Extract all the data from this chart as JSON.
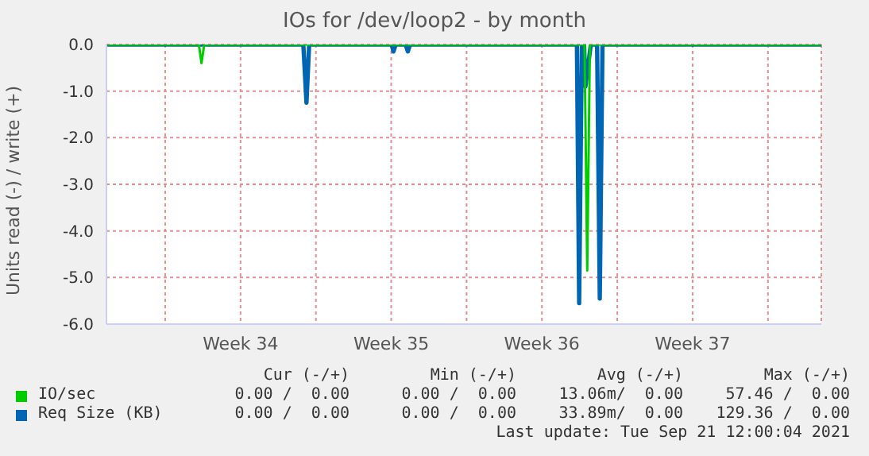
{
  "chart_data": {
    "type": "line",
    "title": "IOs for /dev/loop2 - by month",
    "ylabel": "Units read (-) / write (+)",
    "xlim": [
      "2021-08-20T06:30",
      "2021-09-22T11:30"
    ],
    "xticks": [
      {
        "value": "2021-08-23",
        "label": null
      },
      {
        "value": "2021-08-26T12:00",
        "label": "Week 34"
      },
      {
        "value": "2021-08-30",
        "label": null
      },
      {
        "value": "2021-09-02T12:00",
        "label": "Week 35"
      },
      {
        "value": "2021-09-06",
        "label": null
      },
      {
        "value": "2021-09-09T12:00",
        "label": "Week 36"
      },
      {
        "value": "2021-09-13",
        "label": null
      },
      {
        "value": "2021-09-16T12:00",
        "label": "Week 37"
      },
      {
        "value": "2021-09-20",
        "label": null
      }
    ],
    "ylim": [
      -6,
      0
    ],
    "yticks": [
      {
        "value": -6,
        "label": "-6.0"
      },
      {
        "value": -5,
        "label": "-5.0"
      },
      {
        "value": -4,
        "label": "-4.0"
      },
      {
        "value": -3,
        "label": "-3.0"
      },
      {
        "value": -2,
        "label": "-2.0"
      },
      {
        "value": -1,
        "label": "-1.0"
      },
      {
        "value": 0,
        "label": "0.0"
      }
    ],
    "grid": true,
    "legend": "bottom",
    "marker": "none",
    "line_style": "solid",
    "series": [
      {
        "name": "IO/sec",
        "color": "#00cc00",
        "x": [
          "2021-08-20T06:30",
          "2021-08-24T13:30",
          "2021-08-24T16:30",
          "2021-08-24T19:30",
          "2021-09-11T11:30",
          "2021-09-11T14:30",
          "2021-09-11T17:30",
          "2021-09-22T11:30"
        ],
        "values": [
          0,
          0,
          -0.4,
          0,
          0,
          -4.85,
          0,
          0
        ]
      },
      {
        "name": "Req Size (KB)",
        "color": "#0066b3",
        "x": [
          "2021-08-20T06:30",
          "2021-08-29T10:00",
          "2021-08-29T13:30",
          "2021-08-29T16:30",
          "2021-09-02T12:30",
          "2021-09-02T14:30",
          "2021-09-02T17:00",
          "2021-09-03T04:00",
          "2021-09-03T06:30",
          "2021-09-03T09:00",
          "2021-09-11T03:00",
          "2021-09-11T05:30",
          "2021-09-11T08:30",
          "2021-09-11T11:00",
          "2021-09-11T12:30",
          "2021-09-11T18:30",
          "2021-09-12T01:30",
          "2021-09-12T04:30",
          "2021-09-12T07:30",
          "2021-09-22T11:30"
        ],
        "values": [
          0,
          0,
          -1.25,
          0,
          0,
          -0.15,
          0,
          0,
          -0.15,
          0,
          0,
          -5.55,
          0,
          0,
          -0.9,
          0,
          0,
          -5.45,
          0,
          0
        ]
      }
    ],
    "annotations": [
      "Cur (-/+)",
      "Min (-/+)",
      "Avg (-/+)",
      "Max (-/+)",
      "0.00 /  0.00",
      "0.00 /  0.00",
      "13.06m/  0.00",
      "57.46 /  0.00",
      "0.00 /  0.00",
      "0.00 /  0.00",
      "33.89m/  0.00",
      "129.36 /  0.00",
      "Last update: Tue Sep 21 12:00:04 2021"
    ]
  }
}
